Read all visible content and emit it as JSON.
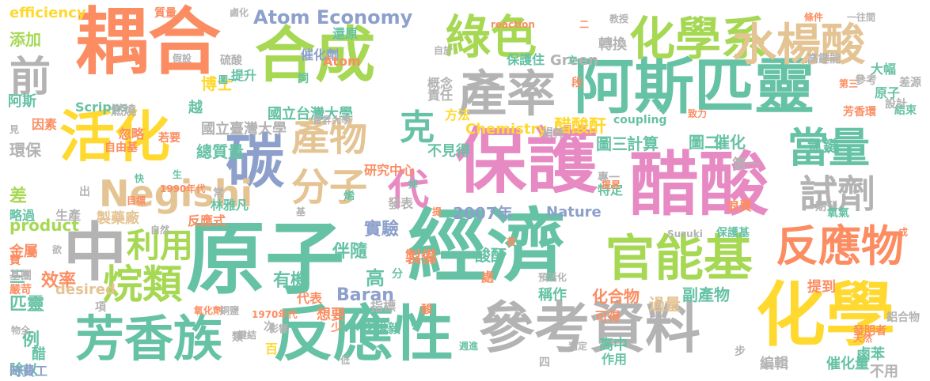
{
  "palette": {
    "teal": "#66c2a5",
    "orange": "#fc8d62",
    "blue": "#8da0cb",
    "pink": "#e78ac3",
    "lime": "#a6d854",
    "yellow": "#ffd92f",
    "tan": "#e5c494",
    "gray": "#b3b3b3"
  },
  "words": [
    {
      "text": "耦合",
      "color": "orange"
    },
    {
      "text": "合成",
      "color": "lime"
    },
    {
      "text": "原子",
      "color": "teal"
    },
    {
      "text": "經濟",
      "color": "teal"
    },
    {
      "text": "阿斯匹靈",
      "color": "teal"
    },
    {
      "text": "保護",
      "color": "pink"
    },
    {
      "text": "醋酸",
      "color": "pink"
    },
    {
      "text": "化學",
      "color": "yellow"
    },
    {
      "text": "反應性",
      "color": "teal"
    },
    {
      "text": "參考資料",
      "color": "gray"
    },
    {
      "text": "芳香族",
      "color": "teal"
    },
    {
      "text": "活化",
      "color": "yellow"
    },
    {
      "text": "產率",
      "color": "gray"
    },
    {
      "text": "化學系",
      "color": "lime"
    },
    {
      "text": "水楊酸",
      "color": "tan"
    },
    {
      "text": "綠色",
      "color": "lime"
    },
    {
      "text": "官能基",
      "color": "lime"
    },
    {
      "text": "反應物",
      "color": "orange"
    },
    {
      "text": "碳",
      "color": "blue"
    },
    {
      "text": "中",
      "color": "gray"
    },
    {
      "text": "當量",
      "color": "teal"
    },
    {
      "text": "試劑",
      "color": "gray"
    },
    {
      "text": "產物",
      "color": "tan"
    },
    {
      "text": "分子",
      "color": "tan"
    },
    {
      "text": "代",
      "color": "pink"
    },
    {
      "text": "克",
      "color": "teal"
    },
    {
      "text": "前",
      "color": "gray"
    },
    {
      "text": "烷類",
      "color": "lime"
    },
    {
      "text": "利用",
      "color": "lime"
    },
    {
      "text": "Negishi",
      "color": "tan"
    },
    {
      "text": "Atom Economy",
      "color": "blue"
    },
    {
      "text": "醋酸酐",
      "color": "yellow"
    },
    {
      "text": "efficiency",
      "color": "yellow"
    },
    {
      "text": "添加",
      "color": "lime"
    },
    {
      "text": "阿斯",
      "color": "teal"
    },
    {
      "text": "product",
      "color": "lime"
    },
    {
      "text": "環保",
      "color": "gray"
    },
    {
      "text": "金屬",
      "color": "orange"
    },
    {
      "text": "差",
      "color": "lime"
    },
    {
      "text": "三",
      "color": "teal"
    },
    {
      "text": "效率",
      "color": "orange"
    },
    {
      "text": "匹靈",
      "color": "teal"
    },
    {
      "text": "例",
      "color": "teal"
    },
    {
      "text": "2007年",
      "color": "blue"
    },
    {
      "text": "Nature",
      "color": "blue"
    },
    {
      "text": "實驗",
      "color": "blue"
    },
    {
      "text": "伴隨",
      "color": "teal"
    },
    {
      "text": "有機",
      "color": "teal"
    },
    {
      "text": "高",
      "color": "teal"
    },
    {
      "text": "Baran",
      "color": "blue"
    },
    {
      "text": "化合物",
      "color": "orange"
    },
    {
      "text": "過量",
      "color": "tan"
    },
    {
      "text": "副產物",
      "color": "teal"
    },
    {
      "text": "圖三",
      "color": "teal"
    },
    {
      "text": "計算",
      "color": "teal"
    },
    {
      "text": "圖二",
      "color": "teal"
    },
    {
      "text": "催化",
      "color": "teal"
    },
    {
      "text": "氫鍵",
      "color": "teal"
    },
    {
      "text": "第一",
      "color": "gray"
    },
    {
      "text": "總質量",
      "color": "teal"
    },
    {
      "text": "國立台灣大學",
      "color": "teal"
    },
    {
      "text": "國立臺灣大學",
      "color": "gray"
    },
    {
      "text": "Chemistry",
      "color": "yellow"
    },
    {
      "text": "轉換",
      "color": "gray"
    },
    {
      "text": "Green",
      "color": "gray"
    },
    {
      "text": "博士",
      "color": "yellow"
    },
    {
      "text": "製備",
      "color": "orange"
    },
    {
      "text": "酸酐",
      "color": "teal"
    },
    {
      "text": "反應式",
      "color": "orange"
    },
    {
      "text": "鹵苯",
      "color": "teal"
    },
    {
      "text": "催化量",
      "color": "teal"
    },
    {
      "text": "大幅",
      "color": "teal"
    },
    {
      "text": "原子",
      "color": "teal"
    },
    {
      "text": "Scripps",
      "color": "teal"
    },
    {
      "text": "因素",
      "color": "orange"
    },
    {
      "text": "略過",
      "color": "teal"
    },
    {
      "text": "desired",
      "color": "tan"
    },
    {
      "text": "除以",
      "color": "teal"
    },
    {
      "text": "醋",
      "color": "teal"
    },
    {
      "text": "時費工",
      "color": "blue"
    },
    {
      "text": "嚴苛",
      "color": "orange"
    },
    {
      "text": "基團",
      "color": "gray"
    },
    {
      "text": "費",
      "color": "orange"
    },
    {
      "text": "製藥廠",
      "color": "tan"
    },
    {
      "text": "生產",
      "color": "gray"
    },
    {
      "text": "林雅凡",
      "color": "teal"
    },
    {
      "text": "李俊毅",
      "color": "teal"
    },
    {
      "text": "指標",
      "color": "gray"
    },
    {
      "text": "代表",
      "color": "orange"
    },
    {
      "text": "想要",
      "color": "orange"
    },
    {
      "text": "稱作",
      "color": "teal"
    },
    {
      "text": "提到",
      "color": "orange"
    },
    {
      "text": "編輯",
      "color": "gray"
    },
    {
      "text": "高中",
      "color": "teal"
    },
    {
      "text": "作用",
      "color": "teal"
    },
    {
      "text": "可得",
      "color": "orange"
    },
    {
      "text": "提升",
      "color": "teal"
    },
    {
      "text": "越",
      "color": "teal"
    },
    {
      "text": "忽略",
      "color": "orange"
    },
    {
      "text": "若要",
      "color": "orange"
    },
    {
      "text": "自由基",
      "color": "orange"
    },
    {
      "text": "燃燒",
      "color": "gray"
    },
    {
      "text": "催化劑",
      "color": "blue"
    },
    {
      "text": "還原",
      "color": "teal"
    },
    {
      "text": "Atom",
      "color": "orange"
    },
    {
      "text": "概念",
      "color": "gray"
    },
    {
      "text": "方法",
      "color": "yellow"
    },
    {
      "text": "責任",
      "color": "gray"
    },
    {
      "text": "保護住",
      "color": "teal"
    },
    {
      "text": "不見得",
      "color": "teal"
    },
    {
      "text": "研究中心",
      "color": "orange"
    },
    {
      "text": "發表",
      "color": "gray"
    },
    {
      "text": "特定",
      "color": "teal"
    },
    {
      "text": "專一",
      "color": "gray"
    },
    {
      "text": "浪費",
      "color": "orange"
    },
    {
      "text": "保護基",
      "color": "teal"
    },
    {
      "text": "期刊",
      "color": "gray"
    },
    {
      "text": "氧氣",
      "color": "teal"
    },
    {
      "text": "不用",
      "color": "gray"
    },
    {
      "text": "參考",
      "color": "gray"
    },
    {
      "text": "差源",
      "color": "gray"
    },
    {
      "text": "結束",
      "color": "teal"
    },
    {
      "text": "設計",
      "color": "gray"
    },
    {
      "text": "高鍵能",
      "color": "gray"
    },
    {
      "text": "芳香環",
      "color": "orange"
    },
    {
      "text": "coupling",
      "color": "teal"
    },
    {
      "text": "損耗",
      "color": "gray"
    },
    {
      "text": "質量",
      "color": "orange"
    },
    {
      "text": "硫酸",
      "color": "gray"
    },
    {
      "text": "假設",
      "color": "gray"
    },
    {
      "text": "Suzuki",
      "color": "gray"
    },
    {
      "text": "1990年代",
      "color": "orange"
    },
    {
      "text": "1970年代",
      "color": "orange"
    },
    {
      "text": "鍵結",
      "color": "gray"
    },
    {
      "text": "影響",
      "color": "gray"
    },
    {
      "text": "判定",
      "color": "gray"
    },
    {
      "text": "天然",
      "color": "orange"
    },
    {
      "text": "提昇",
      "color": "orange"
    },
    {
      "text": "週進",
      "color": "teal"
    },
    {
      "text": "氧化劑",
      "color": "orange"
    },
    {
      "text": "銅鹽",
      "color": "gray"
    },
    {
      "text": "致力",
      "color": "orange"
    },
    {
      "text": "目標",
      "color": "orange"
    },
    {
      "text": "自然",
      "color": "gray"
    },
    {
      "text": "預活化",
      "color": "gray"
    },
    {
      "text": "reaction",
      "color": "orange"
    },
    {
      "text": "晉昇大學",
      "color": "gray"
    },
    {
      "text": "條件",
      "color": "orange"
    },
    {
      "text": "一往間",
      "color": "gray"
    },
    {
      "text": "自於",
      "color": "gray"
    },
    {
      "text": "鹵化",
      "color": "gray"
    },
    {
      "text": "教授",
      "color": "gray"
    },
    {
      "text": "發明者",
      "color": "orange"
    },
    {
      "text": "鋁合物",
      "color": "gray"
    },
    {
      "text": "步",
      "color": "gray"
    },
    {
      "text": "四",
      "color": "gray"
    },
    {
      "text": "項",
      "color": "gray"
    },
    {
      "text": "處",
      "color": "orange"
    },
    {
      "text": "百",
      "color": "yellow"
    },
    {
      "text": "酸",
      "color": "orange"
    },
    {
      "text": "分",
      "color": "teal"
    },
    {
      "text": "烯",
      "color": "teal"
    },
    {
      "text": "少",
      "color": "orange"
    },
    {
      "text": "掉",
      "color": "teal"
    },
    {
      "text": "提",
      "color": "orange"
    },
    {
      "text": "基",
      "color": "gray"
    },
    {
      "text": "常",
      "color": "gray"
    },
    {
      "text": "出",
      "color": "gray"
    },
    {
      "text": "快",
      "color": "teal"
    },
    {
      "text": "生",
      "color": "teal"
    },
    {
      "text": "次",
      "color": "gray"
    },
    {
      "text": "類",
      "color": "gray"
    },
    {
      "text": "詞",
      "color": "teal"
    },
    {
      "text": "圖一",
      "color": "teal"
    },
    {
      "text": "見",
      "color": "gray"
    },
    {
      "text": "段",
      "color": "orange"
    },
    {
      "text": "二",
      "color": "orange"
    },
    {
      "text": "文",
      "color": "teal"
    },
    {
      "text": "低",
      "color": "gray"
    },
    {
      "text": "欲",
      "color": "gray"
    },
    {
      "text": "首",
      "color": "orange"
    },
    {
      "text": "成",
      "color": "orange"
    },
    {
      "text": "第三",
      "color": "orange"
    },
    {
      "text": "物全",
      "color": "gray"
    },
    {
      "text": "先",
      "color": "orange"
    },
    {
      "text": "成敗",
      "color": "orange"
    }
  ]
}
